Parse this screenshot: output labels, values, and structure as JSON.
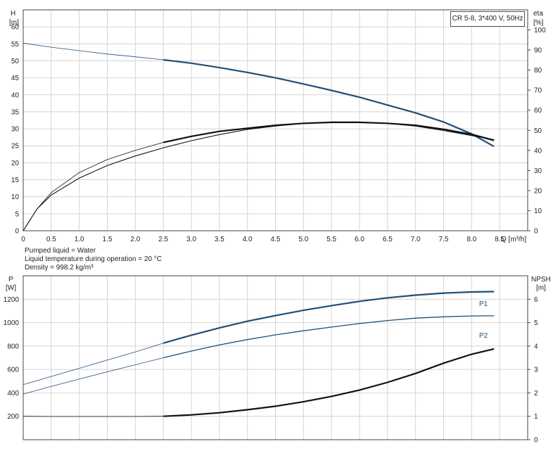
{
  "chart_data": [
    {
      "type": "line",
      "title": "CR 5-8, 3*400 V, 50Hz",
      "xlabel": "Q [m³/h]",
      "ylabel_left": [
        "H",
        "[m]"
      ],
      "ylabel_right": [
        "eta",
        "[%]"
      ],
      "xlim": [
        0,
        9
      ],
      "ylim_left": [
        0,
        65
      ],
      "ylim_right": [
        0,
        110
      ],
      "xticks": [
        "0",
        "0.5",
        "1.0",
        "1.5",
        "2.0",
        "2.5",
        "3.0",
        "3.5",
        "4.0",
        "4.5",
        "5.0",
        "5.5",
        "6.0",
        "6.5",
        "7.0",
        "7.5",
        "8.0",
        "8.5"
      ],
      "yticks_left": [
        "0",
        "5",
        "10",
        "15",
        "20",
        "25",
        "30",
        "35",
        "40",
        "45",
        "50",
        "55",
        "60"
      ],
      "yticks_right": [
        "0",
        "10",
        "20",
        "30",
        "40",
        "50",
        "60",
        "70",
        "80",
        "90",
        "100"
      ],
      "grid": true,
      "series": [
        {
          "axis": "left",
          "color": "#1f4e79",
          "x": [
            0,
            0.5,
            1.0,
            1.5,
            2.0,
            2.5,
            3.0,
            3.5,
            4.0,
            4.5,
            5.0,
            5.5,
            6.0,
            6.5,
            7.0,
            7.5,
            8.0,
            8.4
          ],
          "y": [
            55.2,
            54.0,
            53.0,
            52.0,
            51.2,
            50.3,
            49.3,
            48.0,
            46.6,
            45.0,
            43.2,
            41.3,
            39.3,
            37.0,
            34.7,
            32.0,
            28.5,
            24.8
          ]
        },
        {
          "axis": "right",
          "color": "#111111",
          "x": [
            0,
            0.25,
            0.5,
            1.0,
            1.5,
            2.0,
            2.5,
            3.0,
            3.5,
            4.0,
            4.5,
            5.0,
            5.5,
            6.0,
            6.5,
            7.0,
            7.5,
            8.0,
            8.4
          ],
          "y": [
            0,
            11,
            19,
            29,
            35.5,
            40,
            44,
            47,
            49.5,
            51,
            52.5,
            53.5,
            54,
            54,
            53.5,
            52.5,
            50.5,
            48,
            45
          ]
        },
        {
          "axis": "left",
          "color": "#111111",
          "x": [
            0,
            0.25,
            0.5,
            1.0,
            1.5,
            2.0,
            2.5,
            3.0,
            3.5,
            4.0,
            4.5,
            5.0,
            5.5,
            6.0,
            6.5,
            7.0,
            7.5,
            8.0,
            8.4
          ],
          "y": [
            0,
            6.5,
            10.5,
            15.5,
            19.2,
            22.0,
            24.4,
            26.5,
            28.3,
            29.8,
            30.8,
            31.6,
            32.0,
            32.0,
            31.6,
            30.8,
            29.5,
            28.0,
            26.8
          ]
        }
      ]
    },
    {
      "type": "line",
      "xlabel": "",
      "ylabel_left": [
        "P",
        "[W]"
      ],
      "ylabel_right": [
        "NPSH",
        "[m]"
      ],
      "xlim": [
        0,
        9
      ],
      "ylim_left": [
        0,
        1400
      ],
      "ylim_right": [
        0,
        7
      ],
      "yticks_left": [
        "200",
        "400",
        "600",
        "800",
        "1000",
        "1200"
      ],
      "yticks_right": [
        "0",
        "1",
        "2",
        "3",
        "4",
        "5",
        "6"
      ],
      "grid": true,
      "series": [
        {
          "name": "P1",
          "axis": "left",
          "color": "#1f4e79",
          "x": [
            0,
            0.5,
            1.0,
            1.5,
            2.0,
            2.5,
            3.0,
            3.5,
            4.0,
            4.5,
            5.0,
            5.5,
            6.0,
            6.5,
            7.0,
            7.5,
            8.0,
            8.4
          ],
          "y": [
            470,
            540,
            610,
            680,
            750,
            825,
            893,
            955,
            1012,
            1060,
            1105,
            1145,
            1182,
            1212,
            1235,
            1252,
            1262,
            1265
          ]
        },
        {
          "name": "P2",
          "axis": "left",
          "color": "#1f4e79",
          "x": [
            0,
            0.5,
            1.0,
            1.5,
            2.0,
            2.5,
            3.0,
            3.5,
            4.0,
            4.5,
            5.0,
            5.5,
            6.0,
            6.5,
            7.0,
            7.5,
            8.0,
            8.4
          ],
          "y": [
            390,
            455,
            518,
            580,
            640,
            700,
            757,
            810,
            855,
            895,
            930,
            962,
            992,
            1018,
            1038,
            1050,
            1057,
            1058
          ]
        },
        {
          "axis": "right",
          "color": "#111111",
          "x": [
            0,
            0.5,
            1.0,
            1.5,
            2.0,
            2.5,
            3.0,
            3.5,
            4.0,
            4.5,
            5.0,
            5.5,
            6.0,
            6.5,
            7.0,
            7.5,
            8.0,
            8.4
          ],
          "y": [
            1.0,
            0.99,
            0.99,
            0.99,
            0.99,
            1.0,
            1.06,
            1.15,
            1.28,
            1.43,
            1.62,
            1.85,
            2.12,
            2.45,
            2.83,
            3.27,
            3.65,
            3.88
          ]
        }
      ]
    }
  ],
  "fluid_info": [
    "Pumped liquid = Water",
    "Liquid temperature during operation = 20 °C",
    "Density = 998.2 kg/m³"
  ]
}
